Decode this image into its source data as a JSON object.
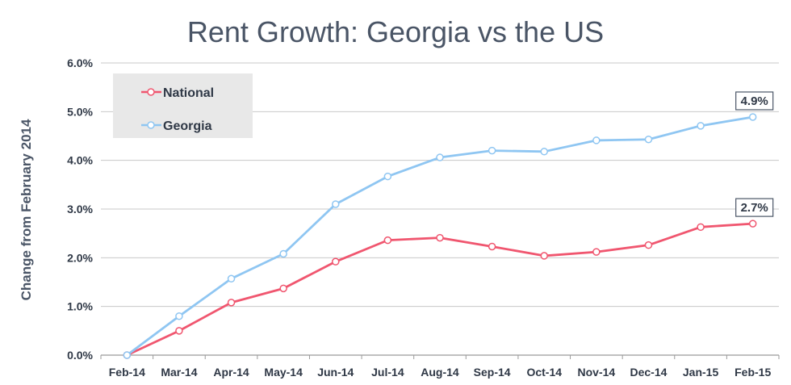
{
  "colors": {
    "national": "#f0566f",
    "georgia": "#8fc6f2",
    "grid": "#c8c8c8",
    "legend_bg": "#e8e8e8"
  },
  "chart_data": {
    "type": "line",
    "title": "Rent Growth: Georgia vs the US",
    "xlabel": "",
    "ylabel": "Change from February 2014",
    "categories": [
      "Feb-14",
      "Mar-14",
      "Apr-14",
      "May-14",
      "Jun-14",
      "Jul-14",
      "Aug-14",
      "Sep-14",
      "Oct-14",
      "Nov-14",
      "Dec-14",
      "Jan-15",
      "Feb-15"
    ],
    "y_ticks": [
      "0.0%",
      "1.0%",
      "2.0%",
      "3.0%",
      "4.0%",
      "5.0%",
      "6.0%"
    ],
    "ylim": [
      0,
      6
    ],
    "grid": true,
    "legend_position": "top-left",
    "series": [
      {
        "name": "National",
        "color": "#f0566f",
        "values": [
          0.0,
          0.5,
          1.08,
          1.37,
          1.92,
          2.36,
          2.41,
          2.23,
          2.04,
          2.12,
          2.26,
          2.63,
          2.7
        ],
        "end_label": "2.7%"
      },
      {
        "name": "Georgia",
        "color": "#8fc6f2",
        "values": [
          0.0,
          0.8,
          1.57,
          2.08,
          3.1,
          3.67,
          4.06,
          4.2,
          4.18,
          4.41,
          4.43,
          4.71,
          4.89
        ],
        "end_label": "4.9%"
      }
    ]
  }
}
